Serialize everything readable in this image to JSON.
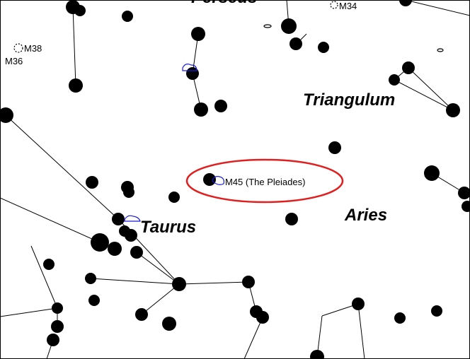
{
  "labels": {
    "constellations": [
      "Perseus",
      "Triangulum",
      "Taurus",
      "Aries"
    ],
    "objects": [
      "M34",
      "M38",
      "M36",
      "M45 (The Pleiades)"
    ]
  }
}
